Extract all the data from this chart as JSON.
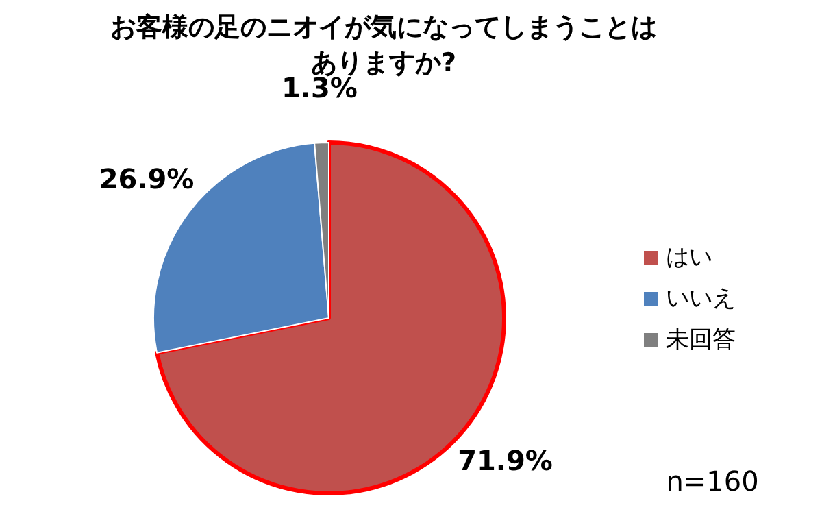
{
  "chart_data": {
    "type": "pie",
    "title": "お客様の足のニオイが気になってしまうことはありますか?",
    "categories": [
      "はい",
      "いいえ",
      "未回答"
    ],
    "values": [
      71.9,
      26.9,
      1.3
    ],
    "colors": [
      "#c0504d",
      "#4f81bd",
      "#7f7f7f"
    ],
    "value_labels": [
      "71.9%",
      "26.9%",
      "1.3%"
    ],
    "legend": "right",
    "annotations": [
      "n=160"
    ]
  }
}
